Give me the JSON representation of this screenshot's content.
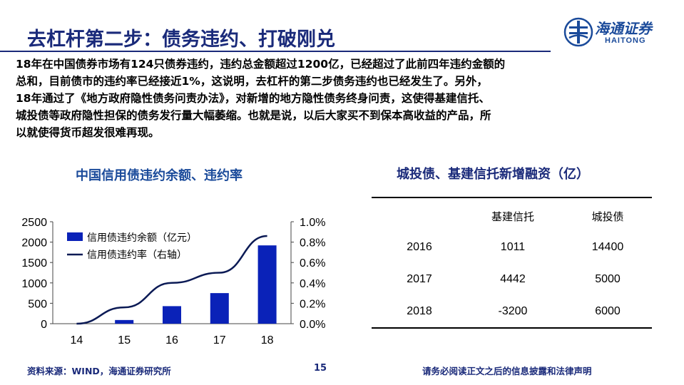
{
  "header": {
    "title": "去杠杆第二步：债务违约、打破刚兑",
    "logo_cn": "海通证券",
    "logo_en": "HAITONG"
  },
  "body": {
    "lines": [
      "18年在中国债券市场有124只债券违约，违约总金额超过1200亿，已经超过了此前四年违约金额的",
      "总和，目前债市的违约率已经接近1%，这说明，去杠杆的第二步债务违约也已经发生了。另外，",
      "18年通过了《地方政府隐性债务问责办法》，对新增的地方隐性债务终身问责，这使得基建信托、",
      "城投债等政府隐性担保的债务发行量大幅萎缩。也就是说，以后大家买不到保本高收益的产品，所",
      "以就使得货币超发很难再现。"
    ]
  },
  "chart_title": "中国信用债违约余额、违约率",
  "chart_data": {
    "type": "bar",
    "categories": [
      "14",
      "15",
      "16",
      "17",
      "18"
    ],
    "series": [
      {
        "name": "信用债违约余额（亿元）",
        "kind": "bar",
        "axis": "left",
        "values": [
          0,
          90,
          430,
          750,
          1920
        ],
        "color": "#0a22b8"
      },
      {
        "name": "信用债违约率（右轴）",
        "kind": "line",
        "axis": "right",
        "values": [
          0.0,
          0.16,
          0.4,
          0.5,
          0.86
        ],
        "color": "#0b1a55"
      }
    ],
    "yticks_left": [
      "0",
      "500",
      "1000",
      "1500",
      "2000",
      "2500"
    ],
    "yticks_right": [
      "0.0%",
      "0.2%",
      "0.4%",
      "0.6%",
      "0.8%",
      "1.0%"
    ],
    "ylim_left": [
      0,
      2500
    ],
    "ylim_right": [
      0,
      1.0
    ],
    "legend_position": "top-left"
  },
  "table": {
    "title": "城投债、基建信托新增融资（亿）",
    "columns": [
      "",
      "基建信托",
      "城投债"
    ],
    "rows": [
      [
        "2016",
        "1011",
        "14400"
      ],
      [
        "2017",
        "4442",
        "5000"
      ],
      [
        "2018",
        "-3200",
        "6000"
      ]
    ]
  },
  "footer": {
    "source": "资料来源：WIND，海通证券研究所",
    "page": "15",
    "disclaimer": "请务必阅读正文之后的信息披露和法律声明"
  }
}
